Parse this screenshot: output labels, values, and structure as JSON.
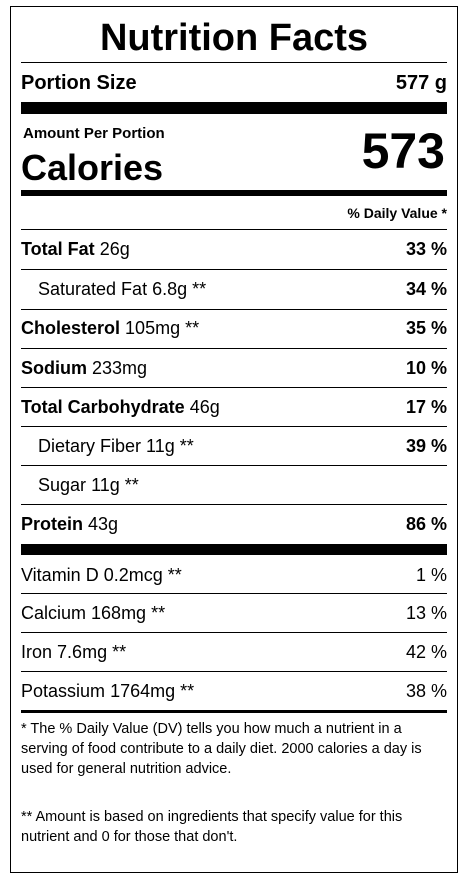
{
  "title": "Nutrition Facts",
  "portion": {
    "label": "Portion Size",
    "value": "577 g"
  },
  "amount_per_portion": "Amount Per Portion",
  "calories": {
    "label": "Calories",
    "value": "573"
  },
  "daily_value_header": "% Daily Value *",
  "nutrients": [
    {
      "name": "Total Fat",
      "amount": "26g",
      "dv": "33 %"
    },
    {
      "name": "Saturated Fat",
      "amount": "6.8g **",
      "dv": "34 %"
    },
    {
      "name": "Cholesterol",
      "amount": "105mg **",
      "dv": "35 %"
    },
    {
      "name": "Sodium",
      "amount": "233mg",
      "dv": "10 %"
    },
    {
      "name": "Total Carbohydrate",
      "amount": "46g",
      "dv": "17 %"
    },
    {
      "name": "Dietary Fiber",
      "amount": "11g **",
      "dv": "39 %"
    },
    {
      "name": "Sugar",
      "amount": "11g **",
      "dv": ""
    },
    {
      "name": "Protein",
      "amount": "43g",
      "dv": "86 %"
    }
  ],
  "vitamins": [
    {
      "name": "Vitamin D",
      "amount": "0.2mcg **",
      "dv": "1 %"
    },
    {
      "name": "Calcium",
      "amount": "168mg **",
      "dv": "13 %"
    },
    {
      "name": "Iron",
      "amount": "7.6mg **",
      "dv": "42 %"
    },
    {
      "name": "Potassium",
      "amount": "1764mg **",
      "dv": "38 %"
    }
  ],
  "footnotes": [
    "* The % Daily Value (DV) tells you how much a nutrient in a serving of food contribute to a daily diet. 2000 calories a day is used for general nutrition advice.",
    "** Amount is based on ingredients that specify value for this nutrient and 0 for those that don't."
  ]
}
